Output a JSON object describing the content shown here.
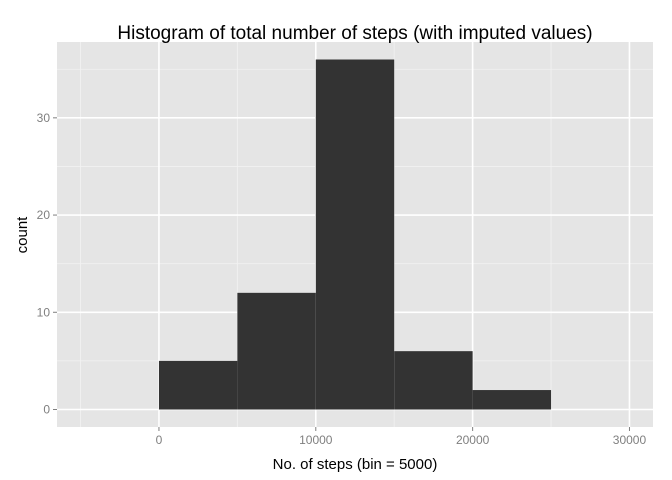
{
  "chart_data": {
    "type": "bar",
    "title": "Histogram of total number of steps (with imputed values)",
    "xlabel": "No. of steps (bin = 5000)",
    "ylabel": "count",
    "bins": [
      {
        "x0": 0,
        "x1": 5000,
        "count": 5
      },
      {
        "x0": 5000,
        "x1": 10000,
        "count": 12
      },
      {
        "x0": 10000,
        "x1": 15000,
        "count": 36
      },
      {
        "x0": 15000,
        "x1": 20000,
        "count": 6
      },
      {
        "x0": 20000,
        "x1": 25000,
        "count": 2
      }
    ],
    "xlim": [
      -6500,
      31500
    ],
    "ylim": [
      -1.8,
      37.8
    ],
    "x_ticks": [
      0,
      10000,
      20000,
      30000
    ],
    "x_tick_labels": [
      "0",
      "10000",
      "20000",
      "30000"
    ],
    "y_ticks": [
      0,
      10,
      20,
      30
    ],
    "y_tick_labels": [
      "0",
      "10",
      "20",
      "30"
    ],
    "grid": true,
    "bar_color": "#333333",
    "panel_color": "#e5e5e5",
    "grid_major_color": "#ffffff",
    "grid_minor_color": "#f2f2f2"
  }
}
